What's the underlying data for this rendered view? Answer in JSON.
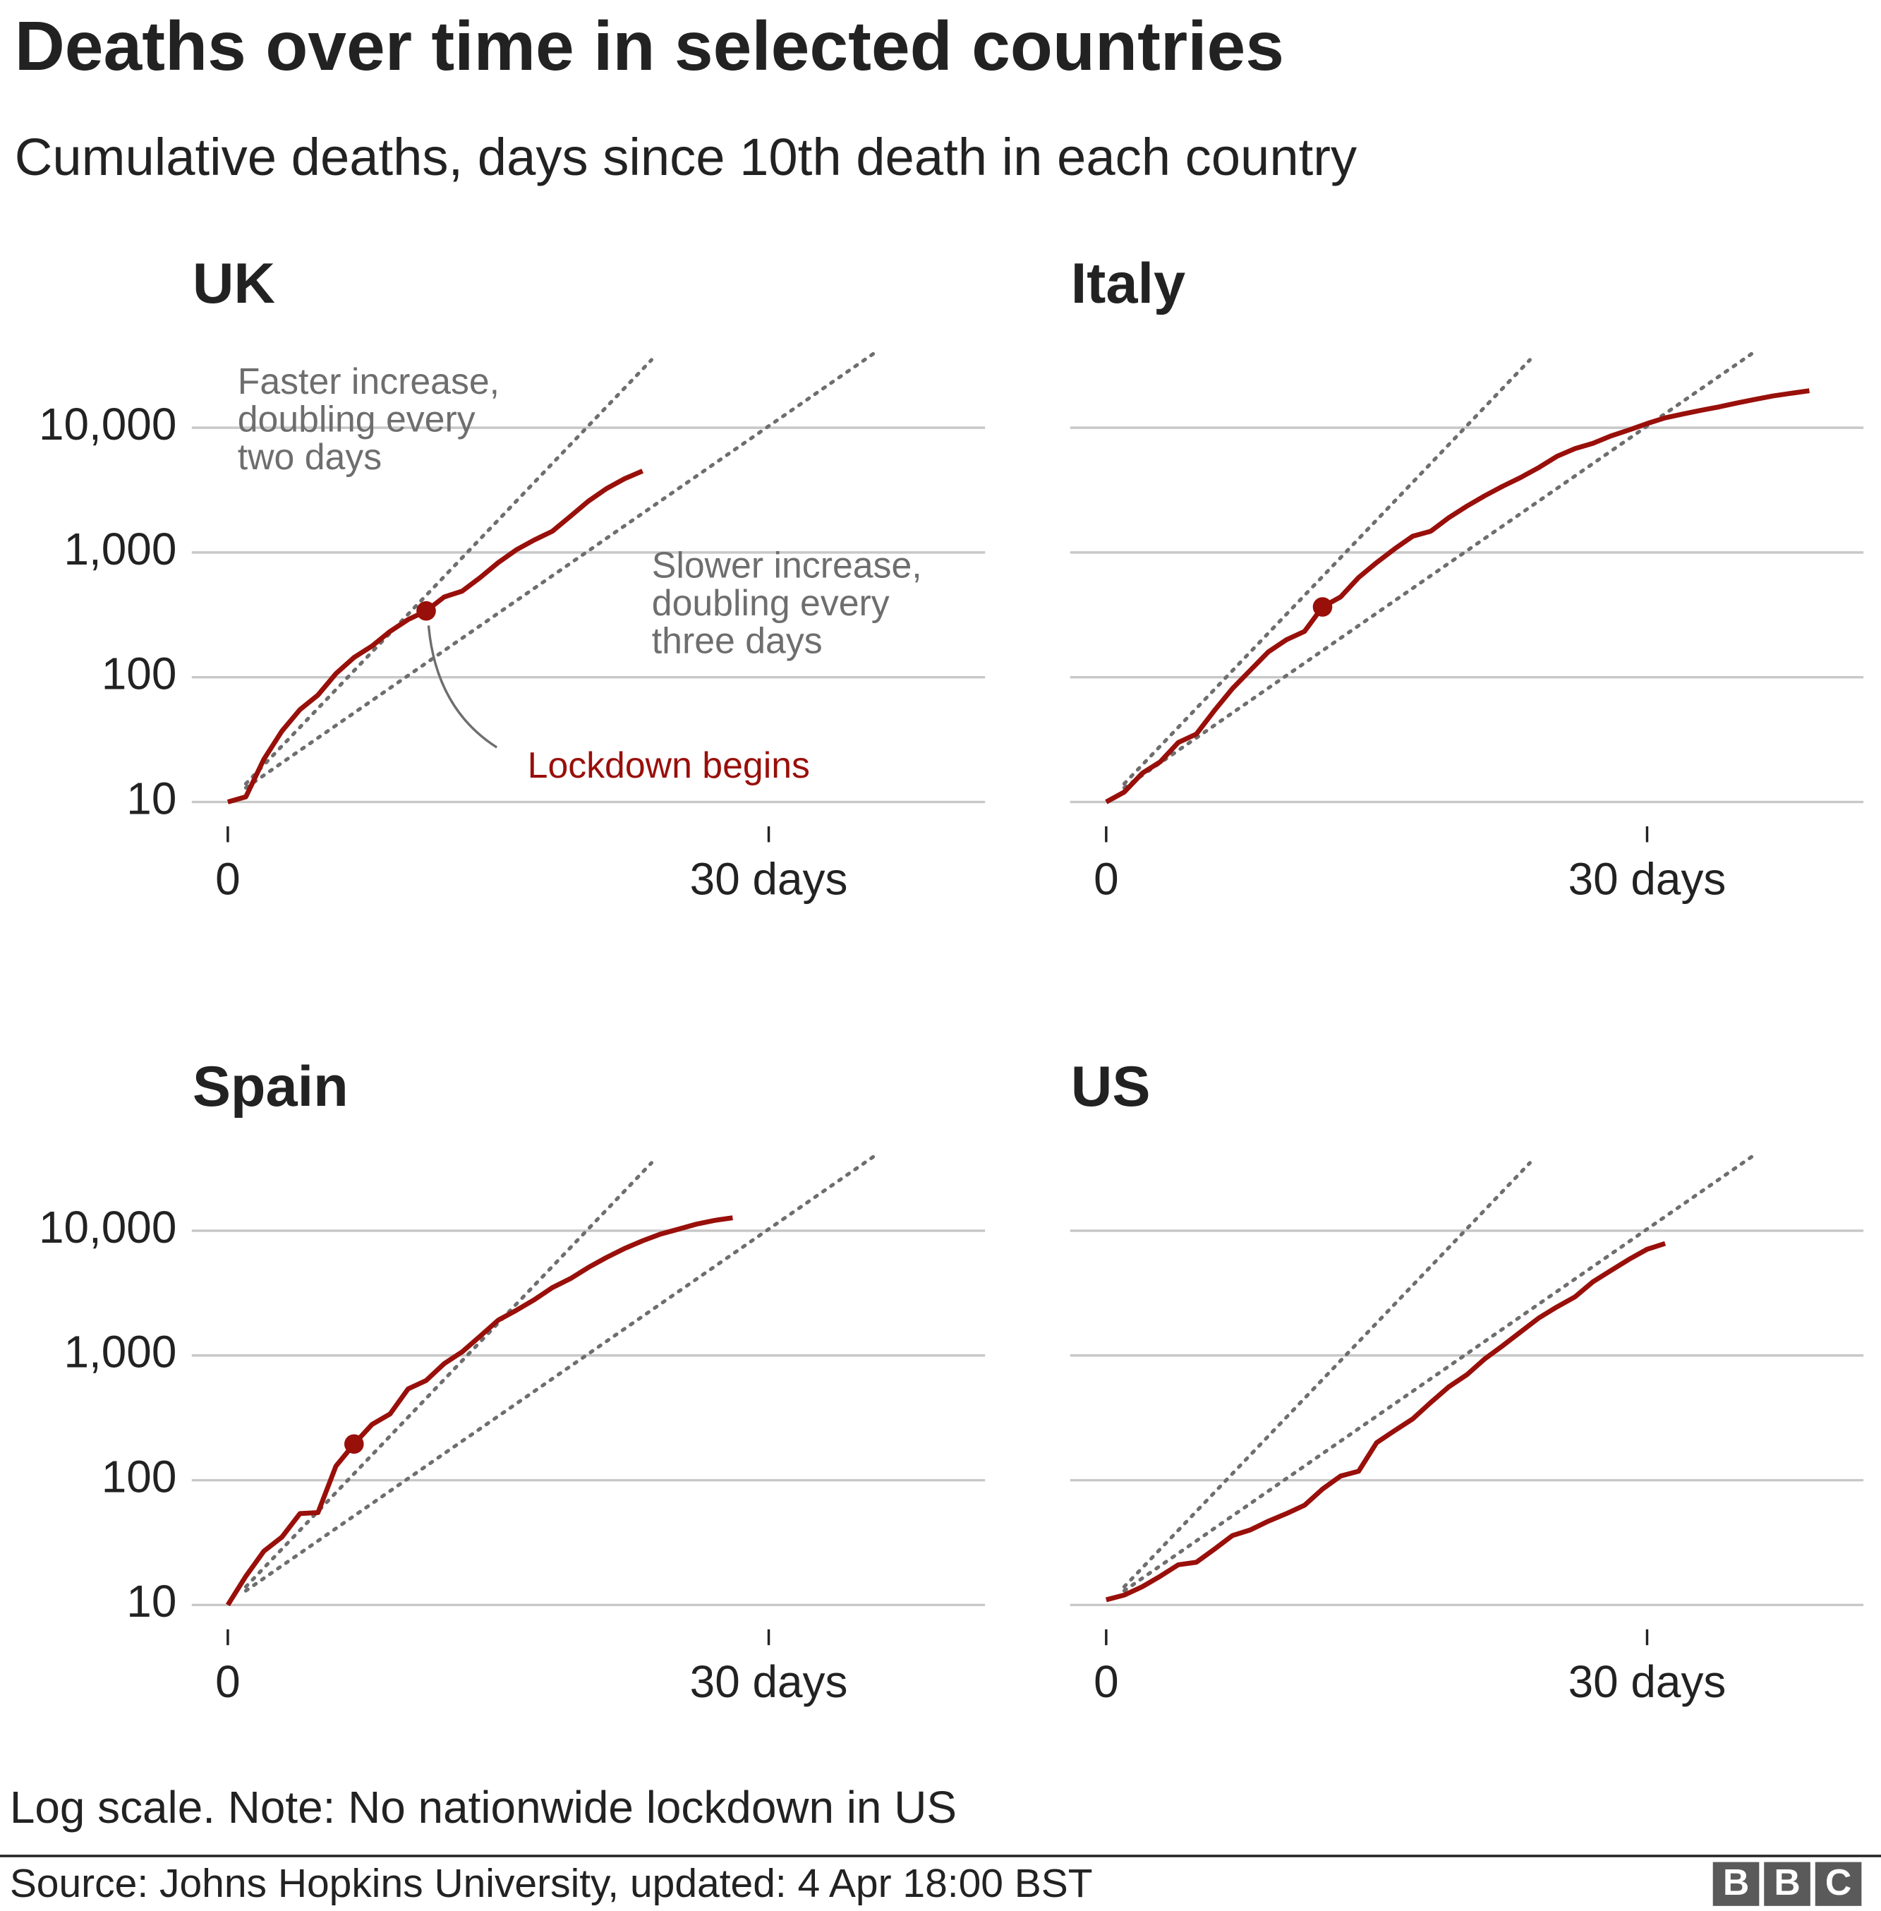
{
  "title": "Deaths over time in selected countries",
  "subtitle": "Cumulative deaths, days since 10th death in each country",
  "note": "Log scale. Note: No nationwide lockdown in US",
  "source": "Source: Johns Hopkins University, updated:  4 Apr 18:00 BST",
  "logo": [
    "B",
    "B",
    "C"
  ],
  "chart_data": [
    {
      "type": "line",
      "title": "UK",
      "log_scale": true,
      "grid": true,
      "show_ytick_labels": true,
      "xlim": [
        -2,
        42
      ],
      "ylim": [
        10,
        45000
      ],
      "xticks": [
        0,
        {
          "value": 30,
          "label": "30 days"
        }
      ],
      "yticks": [
        10,
        100,
        {
          "value": 1000,
          "label": "1,000"
        },
        {
          "value": 10000,
          "label": "10,000"
        }
      ],
      "x": [
        0,
        1,
        2,
        3,
        4,
        5,
        6,
        7,
        8,
        9,
        10,
        11,
        12,
        13,
        14,
        15,
        16,
        17,
        18,
        19,
        20,
        21,
        22,
        23
      ],
      "series": [
        {
          "color": "#990f0a",
          "values": [
            10,
            11,
            22,
            37,
            55,
            72,
            107,
            144,
            178,
            233,
            290,
            340,
            440,
            490,
            630,
            830,
            1050,
            1260,
            1480,
            1950,
            2580,
            3250,
            3900,
            4500
          ]
        }
      ],
      "lockdown": {
        "x": 11,
        "value": 340
      },
      "reference_color": "#6e6e6e",
      "reference_lines": [
        {
          "x": [
            1,
            23.5
          ],
          "values": [
            14,
            35000
          ]
        },
        {
          "x": [
            1,
            36
          ],
          "values": [
            13,
            41000
          ]
        }
      ],
      "annotations": [
        {
          "text": [
            "Faster increase,",
            "doubling every",
            "two days"
          ],
          "color": "#6e6e6e"
        },
        {
          "text": [
            "Slower increase,",
            "doubling every",
            "three days"
          ],
          "color": "#6e6e6e"
        },
        {
          "text": [
            "Lockdown begins"
          ],
          "color": "#990f0a"
        }
      ]
    },
    {
      "type": "line",
      "title": "Italy",
      "log_scale": true,
      "grid": true,
      "show_ytick_labels": false,
      "xlim": [
        -2,
        42
      ],
      "ylim": [
        10,
        45000
      ],
      "xticks": [
        0,
        {
          "value": 30,
          "label": "30 days"
        }
      ],
      "yticks": [
        10,
        100,
        1000,
        10000
      ],
      "x": [
        0,
        1,
        2,
        3,
        4,
        5,
        6,
        7,
        8,
        9,
        10,
        11,
        12,
        13,
        14,
        15,
        16,
        17,
        18,
        19,
        20,
        21,
        22,
        23,
        24,
        25,
        26,
        27,
        28,
        29,
        30,
        31,
        32,
        33,
        34,
        35,
        36,
        37,
        38,
        39
      ],
      "series": [
        {
          "color": "#990f0a",
          "values": [
            10,
            12,
            17,
            21,
            30,
            35,
            54,
            81,
            114,
            160,
            200,
            233,
            366,
            440,
            630,
            830,
            1070,
            1350,
            1480,
            1900,
            2350,
            2850,
            3400,
            4000,
            4800,
            5900,
            6800,
            7500,
            8600,
            9600,
            10800,
            12000,
            12900,
            13800,
            14700,
            15800,
            16900,
            18000,
            18900,
            19800
          ]
        }
      ],
      "lockdown": {
        "x": 12,
        "value": 366
      },
      "reference_color": "#6e6e6e",
      "reference_lines": [
        {
          "x": [
            1,
            23.5
          ],
          "values": [
            14,
            35000
          ]
        },
        {
          "x": [
            1,
            36
          ],
          "values": [
            13,
            41000
          ]
        }
      ]
    },
    {
      "type": "line",
      "title": "Spain",
      "log_scale": true,
      "grid": true,
      "show_ytick_labels": true,
      "xlim": [
        -2,
        42
      ],
      "ylim": [
        10,
        45000
      ],
      "xticks": [
        0,
        {
          "value": 30,
          "label": "30 days"
        }
      ],
      "yticks": [
        10,
        100,
        {
          "value": 1000,
          "label": "1,000"
        },
        {
          "value": 10000,
          "label": "10,000"
        }
      ],
      "x": [
        0,
        1,
        2,
        3,
        4,
        5,
        6,
        7,
        8,
        9,
        10,
        11,
        12,
        13,
        14,
        15,
        16,
        17,
        18,
        19,
        20,
        21,
        22,
        23,
        24,
        25,
        26,
        27,
        28
      ],
      "series": [
        {
          "color": "#990f0a",
          "values": [
            10,
            17,
            27,
            35,
            54,
            55,
            130,
            195,
            280,
            340,
            540,
            630,
            860,
            1070,
            1430,
            1920,
            2300,
            2800,
            3500,
            4130,
            5080,
            6100,
            7200,
            8300,
            9400,
            10300,
            11300,
            12100,
            12700
          ]
        }
      ],
      "lockdown": {
        "x": 7,
        "value": 195
      },
      "reference_color": "#6e6e6e",
      "reference_lines": [
        {
          "x": [
            1,
            23.5
          ],
          "values": [
            14,
            35000
          ]
        },
        {
          "x": [
            1,
            36
          ],
          "values": [
            13,
            41000
          ]
        }
      ]
    },
    {
      "type": "line",
      "title": "US",
      "log_scale": true,
      "grid": true,
      "show_ytick_labels": false,
      "xlim": [
        -2,
        42
      ],
      "ylim": [
        10,
        45000
      ],
      "xticks": [
        0,
        {
          "value": 30,
          "label": "30 days"
        }
      ],
      "yticks": [
        10,
        100,
        1000,
        10000
      ],
      "x": [
        0,
        1,
        2,
        3,
        4,
        5,
        6,
        7,
        8,
        9,
        10,
        11,
        12,
        13,
        14,
        15,
        16,
        17,
        18,
        19,
        20,
        21,
        22,
        23,
        24,
        25,
        26,
        27,
        28,
        29,
        30,
        31
      ],
      "series": [
        {
          "color": "#990f0a",
          "values": [
            11,
            12,
            14,
            17,
            21,
            22,
            28,
            36,
            40,
            47,
            54,
            63,
            85,
            108,
            118,
            200,
            250,
            310,
            420,
            560,
            700,
            940,
            1200,
            1550,
            2000,
            2450,
            2950,
            3900,
            4800,
            5900,
            7100,
            7900
          ]
        }
      ],
      "reference_color": "#6e6e6e",
      "reference_lines": [
        {
          "x": [
            1,
            23.5
          ],
          "values": [
            14,
            35000
          ]
        },
        {
          "x": [
            1,
            36
          ],
          "values": [
            13,
            41000
          ]
        }
      ]
    }
  ]
}
